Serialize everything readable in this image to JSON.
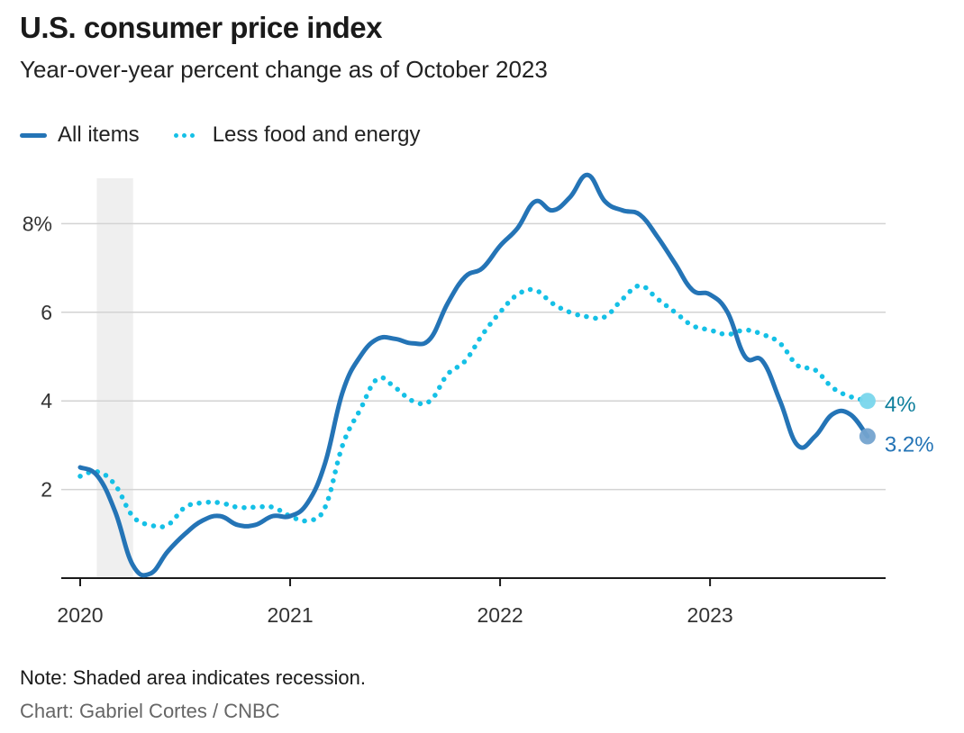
{
  "title": "U.S. consumer price index",
  "subtitle": "Year-over-year percent change as of October 2023",
  "legend": [
    {
      "label": "All items",
      "style": "solid",
      "color": "#2474b6"
    },
    {
      "label": "Less food and energy",
      "style": "dotted",
      "color": "#15c0e6"
    }
  ],
  "note": "Note: Shaded area indicates recession.",
  "source": "Chart: Gabriel Cortes / CNBC",
  "chart_data": {
    "type": "line",
    "title": "U.S. consumer price index",
    "subtitle": "Year-over-year percent change as of October 2023",
    "xlabel": "",
    "ylabel": "",
    "x_start": "2020-01",
    "x_end": "2023-10",
    "x_ticks": [
      "2020",
      "2021",
      "2022",
      "2023"
    ],
    "y_ticks": [
      2,
      4,
      6,
      8
    ],
    "y_tick_labels": [
      "2",
      "4",
      "6",
      "8%"
    ],
    "ylim": [
      0,
      9
    ],
    "grid": true,
    "legend_position": "top-left",
    "recession": {
      "start": "2020-02",
      "end": "2020-04",
      "color": "#efefef"
    },
    "x": [
      "2020-01",
      "2020-02",
      "2020-03",
      "2020-04",
      "2020-05",
      "2020-06",
      "2020-07",
      "2020-08",
      "2020-09",
      "2020-10",
      "2020-11",
      "2020-12",
      "2021-01",
      "2021-02",
      "2021-03",
      "2021-04",
      "2021-05",
      "2021-06",
      "2021-07",
      "2021-08",
      "2021-09",
      "2021-10",
      "2021-11",
      "2021-12",
      "2022-01",
      "2022-02",
      "2022-03",
      "2022-04",
      "2022-05",
      "2022-06",
      "2022-07",
      "2022-08",
      "2022-09",
      "2022-10",
      "2022-11",
      "2022-12",
      "2023-01",
      "2023-02",
      "2023-03",
      "2023-04",
      "2023-05",
      "2023-06",
      "2023-07",
      "2023-08",
      "2023-09",
      "2023-10"
    ],
    "series": [
      {
        "name": "All items",
        "color": "#2474b6",
        "style": "solid",
        "end_label": "3.2%",
        "end_label_color": "#2474b6",
        "marker_color": "#74a3cf",
        "values": [
          2.5,
          2.3,
          1.5,
          0.3,
          0.1,
          0.6,
          1.0,
          1.3,
          1.4,
          1.2,
          1.2,
          1.4,
          1.4,
          1.7,
          2.6,
          4.2,
          5.0,
          5.4,
          5.4,
          5.3,
          5.4,
          6.2,
          6.8,
          7.0,
          7.5,
          7.9,
          8.5,
          8.3,
          8.6,
          9.1,
          8.5,
          8.3,
          8.2,
          7.7,
          7.1,
          6.5,
          6.4,
          6.0,
          5.0,
          4.9,
          4.0,
          3.0,
          3.2,
          3.7,
          3.7,
          3.2
        ]
      },
      {
        "name": "Less food and energy",
        "color": "#15c0e6",
        "style": "dotted",
        "end_label": "4%",
        "end_label_color": "#0e7f9c",
        "marker_color": "#79d6ec",
        "values": [
          2.3,
          2.4,
          2.1,
          1.4,
          1.2,
          1.2,
          1.6,
          1.7,
          1.7,
          1.6,
          1.6,
          1.6,
          1.4,
          1.3,
          1.6,
          3.0,
          3.8,
          4.5,
          4.3,
          4.0,
          4.0,
          4.6,
          4.9,
          5.5,
          6.0,
          6.4,
          6.5,
          6.2,
          6.0,
          5.9,
          5.9,
          6.3,
          6.6,
          6.3,
          6.0,
          5.7,
          5.6,
          5.5,
          5.6,
          5.5,
          5.3,
          4.8,
          4.7,
          4.3,
          4.1,
          4.0
        ]
      }
    ]
  }
}
